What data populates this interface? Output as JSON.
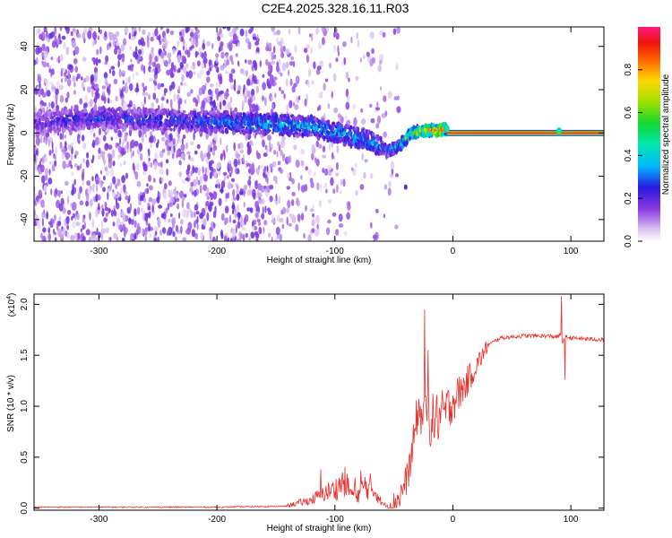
{
  "title": "C2E4.2025.328.16.11.R03",
  "colors": {
    "snr_line": "#e8302c",
    "axis": "#000000",
    "background": "#ffffff"
  },
  "chart_data": [
    {
      "type": "heatmap",
      "name": "spectrogram",
      "xlabel": "Height of straight line (km)",
      "ylabel": "Frequency (Hz)",
      "xlim": [
        -355,
        128
      ],
      "ylim": [
        -50,
        49
      ],
      "xticks": [
        -300,
        -200,
        -100,
        0,
        100
      ],
      "yticks": [
        -40,
        -20,
        0,
        20,
        40
      ],
      "ridge": {
        "x": [
          -350,
          -300,
          -250,
          -200,
          -150,
          -120,
          -90,
          -70,
          -55,
          -45,
          -35,
          -25,
          -15,
          -5,
          0,
          50,
          90,
          128
        ],
        "y": [
          5,
          7,
          6,
          5,
          4,
          3,
          -1,
          -4,
          -8,
          -6,
          0,
          1,
          1,
          2,
          0,
          0,
          0,
          0
        ],
        "amplitude": [
          0.2,
          0.25,
          0.25,
          0.3,
          0.35,
          0.35,
          0.35,
          0.35,
          0.3,
          0.4,
          0.6,
          0.75,
          0.8,
          0.85,
          0.95,
          0.95,
          0.95,
          0.95
        ]
      },
      "colorbar": {
        "label": "Normalized spectral amplitude",
        "range": [
          0,
          1
        ],
        "ticks": [
          0.0,
          0.2,
          0.4,
          0.6,
          0.8
        ]
      }
    },
    {
      "type": "line",
      "name": "snr",
      "xlabel": "Height of straight line (km)",
      "ylabel": "SNR (10 * v/v)",
      "multiplier_label": "(x10",
      "multiplier_exp": "4",
      "multiplier_close": ")",
      "xlim": [
        -355,
        128
      ],
      "ylim": [
        -0.02,
        2.1
      ],
      "xticks": [
        -300,
        -200,
        -100,
        0,
        100
      ],
      "yticks": [
        0.0,
        0.5,
        1.0,
        1.5,
        2.0
      ],
      "envelope": {
        "x": [
          -355,
          -200,
          -140,
          -120,
          -110,
          -100,
          -92,
          -85,
          -80,
          -75,
          -70,
          -65,
          -60,
          -55,
          -50,
          -45,
          -40,
          -35,
          -30,
          -25,
          -20,
          -10,
          0,
          10,
          20,
          30,
          40,
          60,
          80,
          88,
          91,
          93,
          95,
          100,
          128
        ],
        "y": [
          0.01,
          0.01,
          0.02,
          0.06,
          0.11,
          0.14,
          0.2,
          0.1,
          0.1,
          0.17,
          0.14,
          0.12,
          0.03,
          0.02,
          0.05,
          0.12,
          0.25,
          0.5,
          0.95,
          0.9,
          0.85,
          0.9,
          1.05,
          1.2,
          1.4,
          1.6,
          1.67,
          1.69,
          1.69,
          1.68,
          1.7,
          1.63,
          1.68,
          1.67,
          1.65
        ]
      },
      "spikes": [
        {
          "x": -112,
          "y": 0.38
        },
        {
          "x": -83,
          "y": 0.3
        },
        {
          "x": -78,
          "y": 0.37
        },
        {
          "x": -70,
          "y": 0.34
        },
        {
          "x": -24,
          "y": 1.95
        },
        {
          "x": -21,
          "y": 1.55
        },
        {
          "x": 92,
          "y": 2.08
        },
        {
          "x": 95,
          "y": 1.26
        }
      ]
    }
  ]
}
